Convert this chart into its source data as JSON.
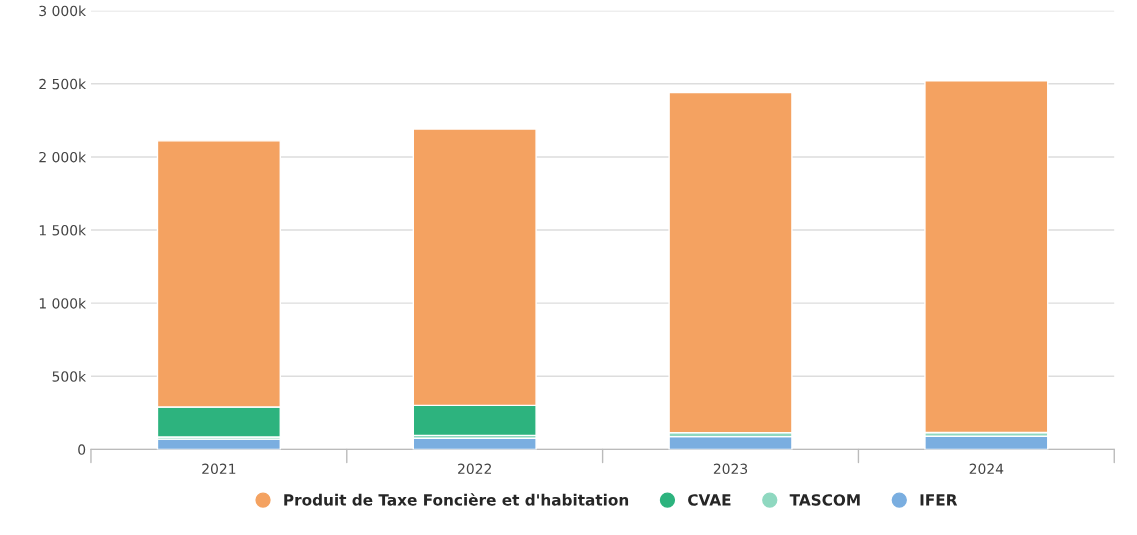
{
  "chart_data": {
    "type": "bar",
    "stacked": true,
    "categories": [
      "2021",
      "2022",
      "2023",
      "2024"
    ],
    "series": [
      {
        "name": "IFER",
        "color": "#7aaee0",
        "values": [
          70,
          76,
          87,
          90
        ]
      },
      {
        "name": "TASCOM",
        "color": "#8fd8c0",
        "values": [
          15,
          20,
          28,
          26
        ]
      },
      {
        "name": "CVAE",
        "color": "#2db37e",
        "values": [
          205,
          205,
          0,
          0
        ]
      },
      {
        "name": "Produit de Taxe Foncière et d'habitation",
        "color": "#f4a261",
        "values": [
          1820,
          1890,
          2325,
          2404
        ]
      }
    ],
    "ylim": [
      0,
      3000
    ],
    "yticks": [
      0,
      {
        "value": 500,
        "label": "500k"
      },
      {
        "value": 1000,
        "label": "1 000k"
      },
      {
        "value": 1500,
        "label": "1 500k"
      },
      {
        "value": 2000,
        "label": "2 000k"
      },
      {
        "value": 2500,
        "label": "2 500k"
      },
      {
        "value": 3000,
        "label": "3 000k"
      }
    ],
    "grid": "y",
    "legend": "bottom",
    "marker": "circle"
  }
}
